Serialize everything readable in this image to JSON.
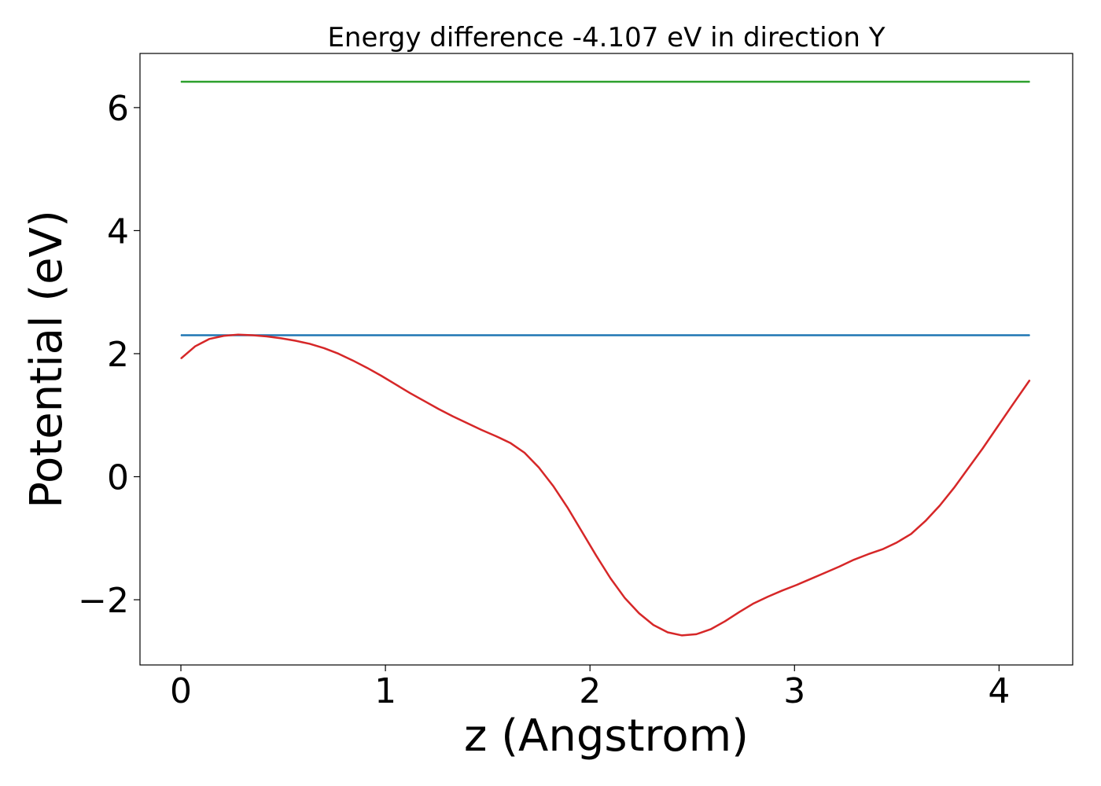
{
  "chart_data": {
    "type": "line",
    "title": "Energy difference -4.107 eV in direction Y",
    "xlabel": "z (Angstrom)",
    "ylabel": "Potential (eV)",
    "xlim": [
      -0.2,
      4.36
    ],
    "ylim": [
      -3.06,
      6.88
    ],
    "xticks": [
      0,
      1,
      2,
      3,
      4
    ],
    "yticks": [
      -2,
      0,
      2,
      4,
      6
    ],
    "xtick_labels": [
      "0",
      "1",
      "2",
      "3",
      "4"
    ],
    "ytick_labels": [
      "−2",
      "0",
      "2",
      "4",
      "6"
    ],
    "grid": false,
    "series": [
      {
        "color": "#2ca02c",
        "x": [
          0.0,
          4.15
        ],
        "y": [
          6.42,
          6.42
        ]
      },
      {
        "color": "#1f77b4",
        "x": [
          0.0,
          4.15
        ],
        "y": [
          2.3,
          2.3
        ]
      },
      {
        "color": "#d62728",
        "x": [
          0.0,
          0.07,
          0.14,
          0.21,
          0.28,
          0.35,
          0.42,
          0.49,
          0.56,
          0.63,
          0.7,
          0.77,
          0.84,
          0.91,
          0.98,
          1.05,
          1.12,
          1.19,
          1.26,
          1.33,
          1.4,
          1.47,
          1.54,
          1.61,
          1.68,
          1.75,
          1.82,
          1.89,
          1.96,
          2.03,
          2.1,
          2.17,
          2.24,
          2.31,
          2.38,
          2.45,
          2.52,
          2.59,
          2.66,
          2.73,
          2.8,
          2.87,
          2.94,
          3.01,
          3.08,
          3.15,
          3.22,
          3.29,
          3.36,
          3.43,
          3.5,
          3.57,
          3.64,
          3.71,
          3.78,
          3.85,
          3.92,
          3.99,
          4.06,
          4.15
        ],
        "y": [
          1.92,
          2.12,
          2.24,
          2.29,
          2.31,
          2.3,
          2.28,
          2.25,
          2.21,
          2.16,
          2.09,
          2.0,
          1.89,
          1.77,
          1.64,
          1.5,
          1.36,
          1.23,
          1.1,
          0.98,
          0.87,
          0.76,
          0.66,
          0.55,
          0.39,
          0.15,
          -0.15,
          -0.5,
          -0.89,
          -1.28,
          -1.65,
          -1.97,
          -2.22,
          -2.41,
          -2.53,
          -2.58,
          -2.56,
          -2.48,
          -2.35,
          -2.2,
          -2.06,
          -1.95,
          -1.85,
          -1.76,
          -1.66,
          -1.56,
          -1.46,
          -1.35,
          -1.26,
          -1.18,
          -1.07,
          -0.93,
          -0.72,
          -0.47,
          -0.18,
          0.14,
          0.46,
          0.8,
          1.14,
          1.57
        ]
      }
    ]
  }
}
